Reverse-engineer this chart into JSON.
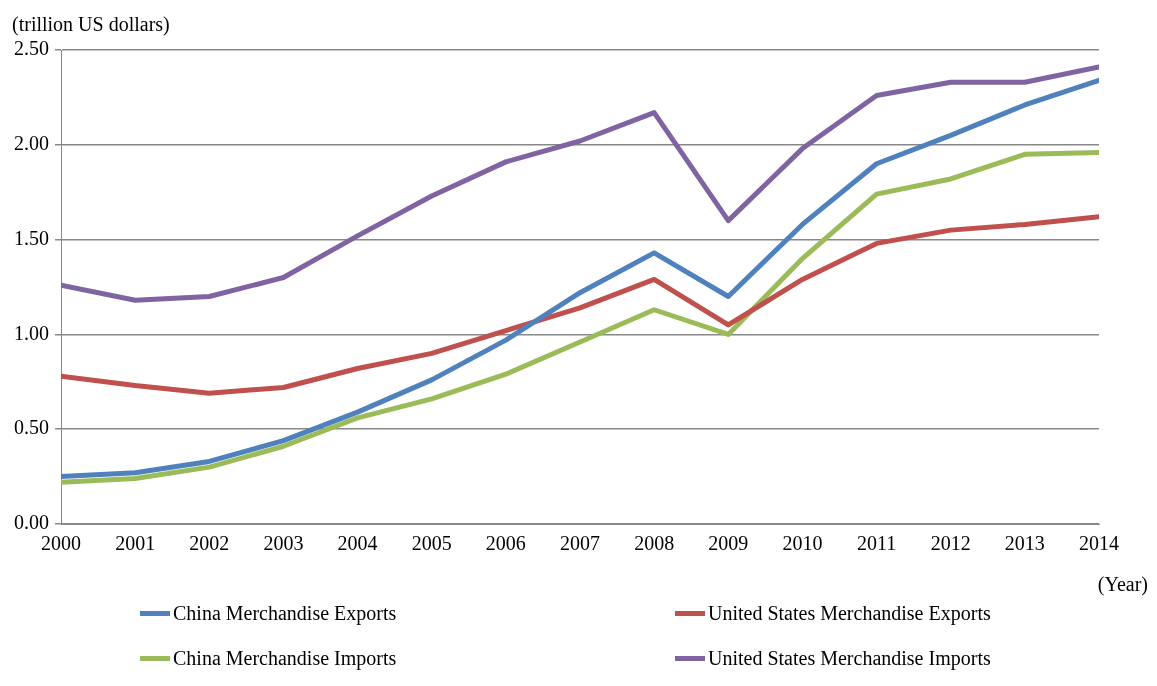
{
  "chart_data": {
    "type": "line",
    "ylabel": "(trillion US dollars)",
    "xlabel": "(Year)",
    "x": [
      2000,
      2001,
      2002,
      2003,
      2004,
      2005,
      2006,
      2007,
      2008,
      2009,
      2010,
      2011,
      2012,
      2013,
      2014
    ],
    "xlim": [
      2000,
      2014
    ],
    "xticks": [
      2000,
      2001,
      2002,
      2003,
      2004,
      2005,
      2006,
      2007,
      2008,
      2009,
      2010,
      2011,
      2012,
      2013,
      2014
    ],
    "ylim": [
      0,
      2.5
    ],
    "yticks": [
      {
        "value": 0,
        "label": "0.00"
      },
      {
        "value": 0.5,
        "label": "0.50"
      },
      {
        "value": 1,
        "label": "1.00"
      },
      {
        "value": 1.5,
        "label": "1.50"
      },
      {
        "value": 2,
        "label": "2.00"
      },
      {
        "value": 2.5,
        "label": "2.50"
      }
    ],
    "grid": "y",
    "legend": "bottom",
    "marker": "none",
    "line_style": "solid",
    "series": [
      {
        "name": "China Merchandise Exports",
        "color": "#4f81bd",
        "values": [
          0.25,
          0.27,
          0.33,
          0.44,
          0.59,
          0.76,
          0.97,
          1.22,
          1.43,
          1.2,
          1.58,
          1.9,
          2.05,
          2.21,
          2.34
        ]
      },
      {
        "name": "United States Merchandise Exports",
        "color": "#c0504d",
        "values": [
          0.78,
          0.73,
          0.69,
          0.72,
          0.82,
          0.9,
          1.02,
          1.14,
          1.29,
          1.05,
          1.29,
          1.48,
          1.55,
          1.58,
          1.62
        ]
      },
      {
        "name": "China Merchandise Imports",
        "color": "#9bbb59",
        "values": [
          0.22,
          0.24,
          0.3,
          0.41,
          0.56,
          0.66,
          0.79,
          0.96,
          1.13,
          1.0,
          1.4,
          1.74,
          1.82,
          1.95,
          1.96
        ]
      },
      {
        "name": "United States Merchandise Imports",
        "color": "#8064a2",
        "values": [
          1.26,
          1.18,
          1.2,
          1.3,
          1.52,
          1.73,
          1.91,
          2.02,
          2.17,
          1.6,
          1.98,
          2.26,
          2.33,
          2.33,
          2.41
        ]
      }
    ]
  }
}
